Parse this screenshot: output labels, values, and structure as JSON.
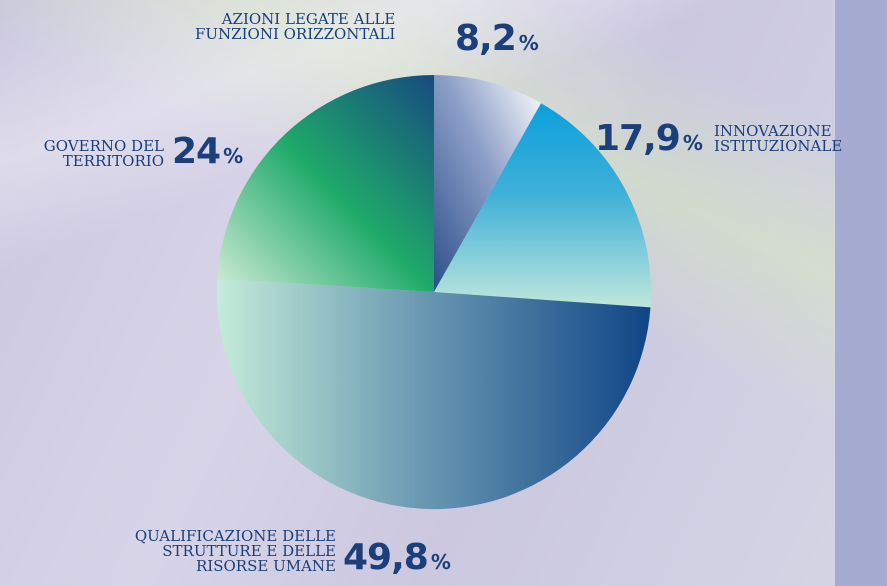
{
  "chart_data": {
    "type": "pie",
    "slices": [
      {
        "label": "AZIONI LEGATE ALLE\nFUNZIONI ORIZZONTALI",
        "value": 8.2,
        "display": "8,2"
      },
      {
        "label": "INNOVAZIONE\nISTITUZIONALE",
        "value": 17.9,
        "display": "17,9"
      },
      {
        "label": "QUALIFICAZIONE DELLE\nSTRUTTURE E DELLE\nRISORSE UMANE",
        "value": 49.8,
        "display": "49,8"
      },
      {
        "label": "GOVERNO DEL\nTERRITORIO",
        "value": 24.0,
        "display": "24"
      }
    ],
    "percent_sign": "%",
    "start": "top (12 o'clock), clockwise",
    "colors": {
      "slice_1": [
        "#2b4f8a",
        "#ffffff"
      ],
      "slice_2": [
        "#0aa0dc",
        "#bfe7dd"
      ],
      "slice_3": [
        "#c3ecd8",
        "#0f4586"
      ],
      "slice_4": [
        "#174a80",
        "#1faa6a",
        "#d3ecd8"
      ],
      "text": "#1b3f7a"
    }
  }
}
